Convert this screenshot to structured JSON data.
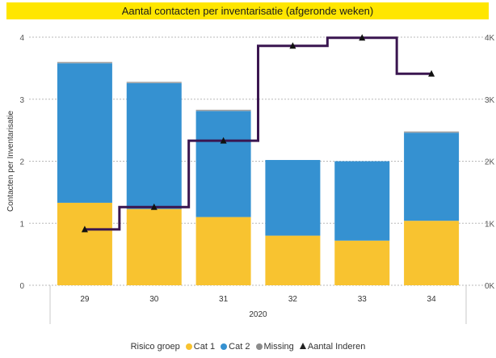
{
  "chart_data": {
    "type": "bar",
    "title": "Aantal contacten per inventarisatie (afgeronde weken)",
    "ylabel": "Contacten per Inventarisatie",
    "xlabel": "",
    "x_group_label": "2020",
    "categories": [
      "29",
      "30",
      "31",
      "32",
      "33",
      "34"
    ],
    "ylim": [
      0,
      4
    ],
    "y_ticks": [
      "0",
      "1",
      "2",
      "3",
      "4"
    ],
    "y2lim": [
      0,
      4000
    ],
    "y2_ticks": [
      "0K",
      "1K",
      "2K",
      "3K",
      "4K"
    ],
    "stacked": true,
    "series": [
      {
        "name": "Cat 1",
        "color": "#f8c330",
        "values": [
          1.33,
          1.23,
          1.1,
          0.8,
          0.72,
          1.04
        ]
      },
      {
        "name": "Cat 2",
        "color": "#3591d1",
        "values": [
          2.25,
          2.03,
          1.71,
          1.22,
          1.28,
          1.42
        ]
      },
      {
        "name": "Missing",
        "color": "#a0a0a0",
        "values": [
          0.02,
          0.02,
          0.02,
          0.0,
          0.0,
          0.02
        ]
      },
      {
        "name": "Aantal Inderen",
        "type": "step-line",
        "axis": "secondary",
        "color": "#3a1650",
        "values": [
          900,
          1260,
          2330,
          3860,
          3990,
          3410
        ]
      }
    ],
    "legend_title": "Risico groep",
    "legend_position": "bottom",
    "grid": true
  }
}
